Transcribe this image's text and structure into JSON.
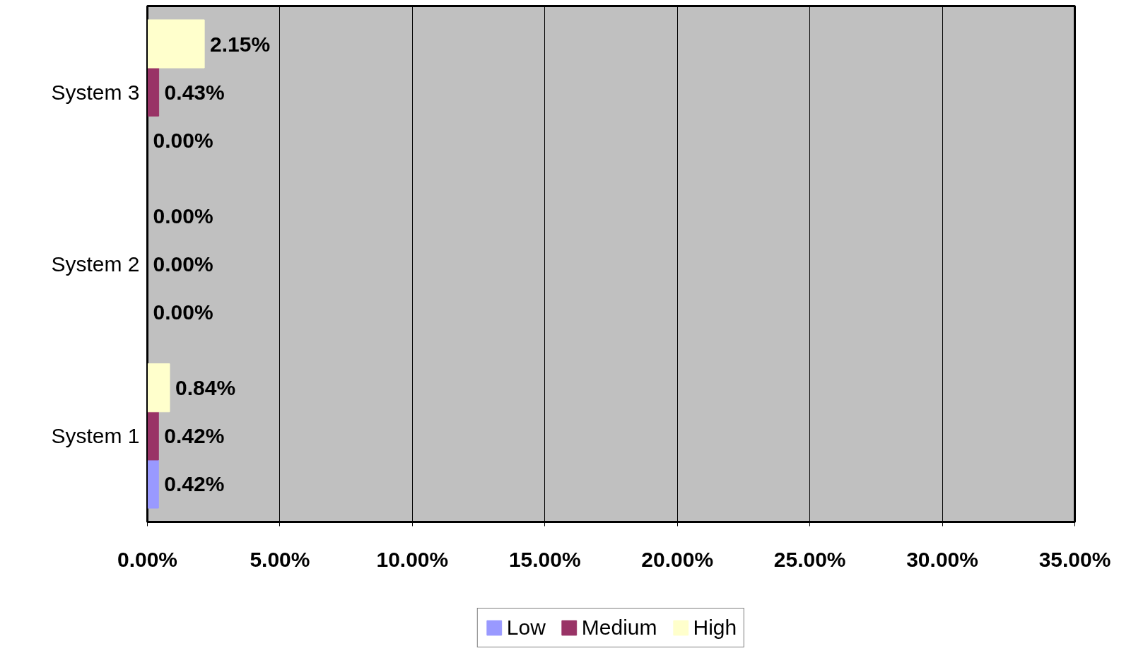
{
  "chart_data": {
    "type": "bar",
    "orientation": "horizontal",
    "categories": [
      "System 3",
      "System 2",
      "System 1"
    ],
    "series": [
      {
        "name": "Low",
        "color": "#9999ff",
        "values": [
          0,
          0,
          0.42
        ],
        "value_labels": [
          "0.00%",
          "0.00%",
          "0.42%"
        ]
      },
      {
        "name": "Medium",
        "color": "#993366",
        "values": [
          0.43,
          0,
          0.42
        ],
        "value_labels": [
          "0.43%",
          "0.00%",
          "0.42%"
        ]
      },
      {
        "name": "High",
        "color": "#ffffcc",
        "values": [
          2.15,
          0,
          0.84
        ],
        "value_labels": [
          "2.15%",
          "0.00%",
          "0.84%"
        ]
      }
    ],
    "xlim": [
      0,
      35
    ],
    "xticks": [
      {
        "value": 0,
        "label": "0.00%"
      },
      {
        "value": 5,
        "label": "5.00%"
      },
      {
        "value": 10,
        "label": "10.00%"
      },
      {
        "value": 15,
        "label": "15.00%"
      },
      {
        "value": 20,
        "label": "20.00%"
      },
      {
        "value": 25,
        "label": "25.00%"
      },
      {
        "value": 30,
        "label": "30.00%"
      },
      {
        "value": 35,
        "label": "35.00%"
      }
    ],
    "grid": "x",
    "legend": "bottom"
  }
}
